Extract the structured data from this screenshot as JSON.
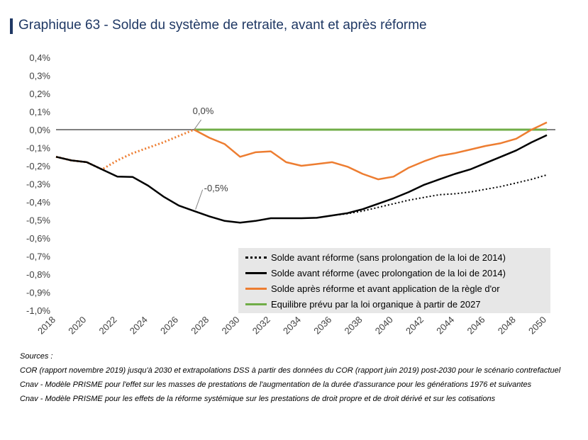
{
  "title": {
    "number": "Graphique 63",
    "separator": " - ",
    "text": "Solde du système de retraite, avant et après réforme"
  },
  "colors": {
    "title": "#1f3864",
    "black": "#000000",
    "orange": "#ed7d31",
    "green": "#70ad47",
    "legend_bg": "#e7e7e7"
  },
  "chart_data": {
    "type": "line",
    "title": "Solde du système de retraite, avant et après réforme",
    "xlabel": "",
    "ylabel": "",
    "ylim": [
      -1.0,
      0.4
    ],
    "xlim": [
      2018,
      2050
    ],
    "yticks": [
      0.4,
      0.3,
      0.2,
      0.1,
      0.0,
      -0.1,
      -0.2,
      -0.3,
      -0.4,
      -0.5,
      -0.6,
      -0.7,
      -0.8,
      -0.9,
      -1.0
    ],
    "ytick_labels": [
      "0,4%",
      "0,3%",
      "0,2%",
      "0,1%",
      "0,0%",
      "-0,1%",
      "-0,2%",
      "-0,3%",
      "-0,4%",
      "-0,5%",
      "-0,6%",
      "-0,7%",
      "-0,8%",
      "-0,9%",
      "-1,0%"
    ],
    "xticks": [
      "2018",
      "2020",
      "2022",
      "2024",
      "2026",
      "2028",
      "2030",
      "2032",
      "2034",
      "2036",
      "2038",
      "2040",
      "2042",
      "2044",
      "2046",
      "2048",
      "2050"
    ],
    "grid": false,
    "legend_position": "bottom-right",
    "annotations": [
      {
        "text": "0,0%",
        "x": 2027,
        "y": 0.0
      },
      {
        "text": "-0,5%",
        "x": 2027,
        "y": -0.45
      }
    ],
    "series": [
      {
        "name": "Solde avant réforme (sans prolongation de la loi de 2014)",
        "style": "dotted",
        "color": "#000000",
        "x": [
          2036,
          2037,
          2038,
          2039,
          2040,
          2041,
          2042,
          2043,
          2044,
          2045,
          2046,
          2047,
          2048,
          2049,
          2050
        ],
        "y": [
          -0.475,
          -0.465,
          -0.45,
          -0.43,
          -0.41,
          -0.39,
          -0.375,
          -0.36,
          -0.355,
          -0.345,
          -0.33,
          -0.315,
          -0.295,
          -0.275,
          -0.25
        ]
      },
      {
        "name": "Solde avant réforme (avec prolongation de la loi de 2014)",
        "style": "solid",
        "color": "#000000",
        "x": [
          2018,
          2019,
          2020,
          2021,
          2022,
          2023,
          2024,
          2025,
          2026,
          2027,
          2028,
          2029,
          2030,
          2031,
          2032,
          2033,
          2034,
          2035,
          2036,
          2037,
          2038,
          2039,
          2040,
          2041,
          2042,
          2043,
          2044,
          2045,
          2046,
          2047,
          2048,
          2049,
          2050
        ],
        "y": [
          -0.15,
          -0.17,
          -0.18,
          -0.22,
          -0.26,
          -0.262,
          -0.31,
          -0.37,
          -0.42,
          -0.45,
          -0.48,
          -0.505,
          -0.515,
          -0.505,
          -0.49,
          -0.49,
          -0.49,
          -0.488,
          -0.475,
          -0.462,
          -0.44,
          -0.41,
          -0.38,
          -0.345,
          -0.305,
          -0.275,
          -0.245,
          -0.22,
          -0.185,
          -0.15,
          -0.115,
          -0.07,
          -0.03
        ]
      },
      {
        "name": "Solde après réforme et avant application de la règle d'or",
        "style": "solid",
        "color": "#ed7d31",
        "x": [
          2027,
          2028,
          2029,
          2030,
          2031,
          2032,
          2033,
          2034,
          2035,
          2036,
          2037,
          2038,
          2039,
          2040,
          2041,
          2042,
          2043,
          2044,
          2045,
          2046,
          2047,
          2048,
          2049,
          2050
        ],
        "y": [
          0.0,
          -0.045,
          -0.08,
          -0.15,
          -0.125,
          -0.12,
          -0.18,
          -0.2,
          -0.19,
          -0.18,
          -0.205,
          -0.245,
          -0.275,
          -0.26,
          -0.21,
          -0.175,
          -0.145,
          -0.13,
          -0.11,
          -0.09,
          -0.075,
          -0.05,
          0.0,
          0.04
        ],
        "dotted_prefix": {
          "x": [
            2018,
            2019,
            2020,
            2021,
            2022,
            2023,
            2024,
            2025,
            2026,
            2027
          ],
          "y": [
            -0.15,
            -0.17,
            -0.18,
            -0.22,
            -0.17,
            -0.13,
            -0.1,
            -0.07,
            -0.035,
            0.0
          ]
        }
      },
      {
        "name": "Equilibre prévu par la loi organique à partir de 2027",
        "style": "solid",
        "color": "#70ad47",
        "x": [
          2027,
          2050
        ],
        "y": [
          0.0,
          0.0
        ]
      }
    ]
  },
  "legend": [
    {
      "label": "Solde avant réforme (sans prolongation de la loi de 2014)",
      "style": "dotted",
      "color": "#000000"
    },
    {
      "label": "Solde avant réforme (avec prolongation de la loi de 2014)",
      "style": "solid",
      "color": "#000000"
    },
    {
      "label": "Solde après réforme et avant application de la règle d'or",
      "style": "solid",
      "color": "#ed7d31"
    },
    {
      "label": "Equilibre prévu par la loi organique à partir de 2027",
      "style": "solid",
      "color": "#70ad47"
    }
  ],
  "sources": {
    "heading": "Sources :",
    "lines": [
      "COR (rapport novembre 2019) jusqu'à 2030 et extrapolations DSS à partir des données du COR (rapport juin 2019) post-2030 pour le scénario contrefactuel",
      "Cnav - Modèle PRISME pour l'effet sur les masses de prestations de l'augmentation de la durée d'assurance pour les générations 1976 et suivantes",
      "Cnav - Modèle PRISME pour les effets de la réforme systémique sur les prestations de droit propre et de droit dérivé et sur les cotisations"
    ]
  }
}
